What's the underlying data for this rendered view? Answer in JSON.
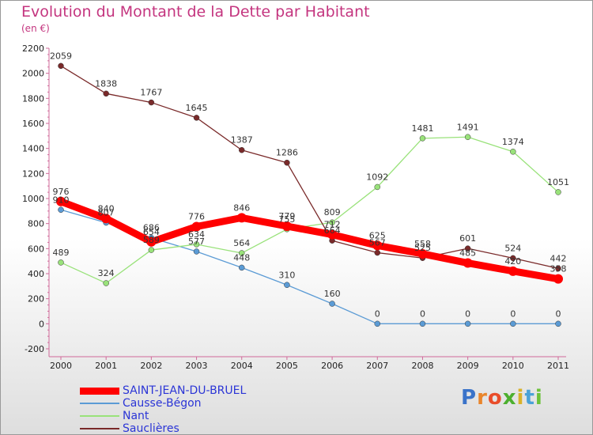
{
  "header": {
    "title": "Evolution du Montant de la Dette par Habitant",
    "subtitle": "(en €)"
  },
  "logo": {
    "text": "Proxiti",
    "colors": [
      "#3a73c9",
      "#e9852b",
      "#e94d2a",
      "#4caf2e",
      "#d9b22a",
      "#4aa2d8",
      "#6cc23a"
    ]
  },
  "chart_data": {
    "type": "line",
    "title": "Evolution du Montant de la Dette par Habitant",
    "subtitle": "(en €)",
    "xlabel": "",
    "ylabel": "",
    "x": [
      "2000",
      "2001",
      "2002",
      "2003",
      "2004",
      "2005",
      "2006",
      "2007",
      "2008",
      "2009",
      "2010",
      "2011"
    ],
    "ylim": [
      -200,
      2200
    ],
    "yticks": [
      -200,
      0,
      200,
      400,
      600,
      800,
      1000,
      1200,
      1400,
      1600,
      1800,
      2000,
      2200
    ],
    "grid": false,
    "legend_position": "bottom-left",
    "series": [
      {
        "name": "SAINT-JEAN-DU-BRUEL",
        "color": "#ff0000",
        "values": [
          976,
          840,
          654,
          776,
          846,
          779,
          712,
          625,
          558,
          485,
          420,
          358
        ],
        "labels": [
          "976",
          "840",
          "654",
          "776",
          "846",
          "779",
          "712",
          "625",
          "558",
          "485",
          "420",
          "358"
        ]
      },
      {
        "name": "Causse-Bégon",
        "color": "#5b9bd5",
        "values": [
          910,
          807,
          686,
          577,
          448,
          310,
          160,
          0,
          0,
          0,
          0,
          0
        ],
        "labels": [
          "910",
          "807",
          "686",
          "577",
          "448",
          "310",
          "160",
          "0",
          "0",
          "0",
          "0",
          "0"
        ]
      },
      {
        "name": "Nant",
        "color": "#99e27a",
        "values": [
          489,
          324,
          589,
          634,
          564,
          755,
          809,
          1092,
          1481,
          1491,
          1374,
          1051
        ],
        "labels": [
          "489",
          "324",
          "589",
          "634",
          "564",
          "755",
          "809",
          "1092",
          "1481",
          "1491",
          "1374",
          "1051"
        ]
      },
      {
        "name": "Sauclières",
        "color": "#7a2a2a",
        "values": [
          2059,
          1838,
          1767,
          1645,
          1387,
          1286,
          664,
          567,
          525,
          601,
          524,
          442
        ],
        "labels": [
          "2059",
          "1838",
          "1767",
          "1645",
          "1387",
          "1286",
          "664",
          "567",
          "525",
          "601",
          "524",
          "442"
        ]
      }
    ]
  }
}
